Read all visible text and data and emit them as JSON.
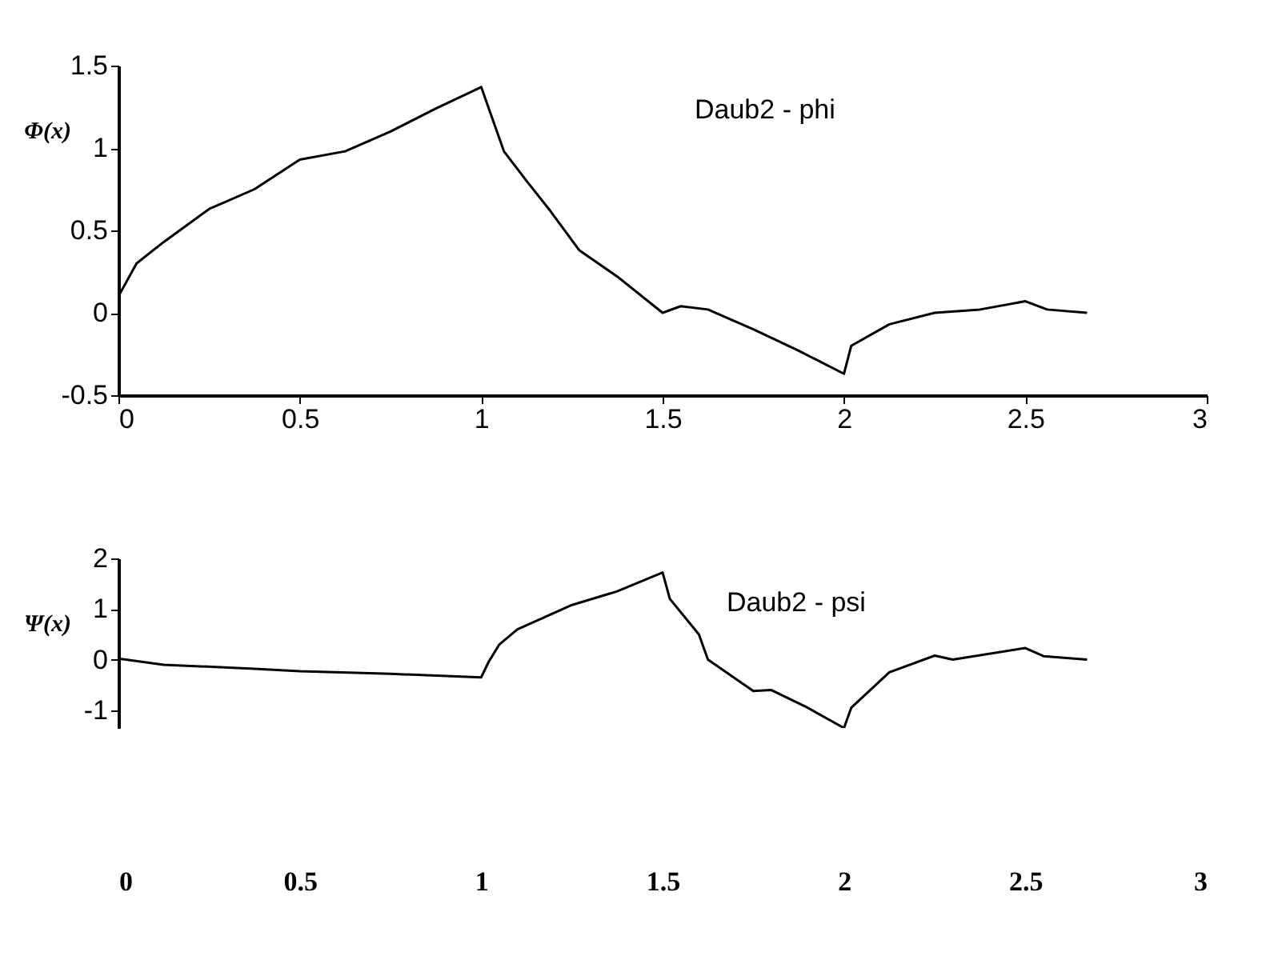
{
  "chart_data": [
    {
      "type": "line",
      "ylabel": "Φ(x)",
      "annotations": [
        "Daub2 - phi"
      ],
      "xlim": [
        0,
        3
      ],
      "xticks": [
        0,
        0.5,
        1,
        1.5,
        2,
        2.5,
        3
      ],
      "ylim": [
        -0.5,
        1.5
      ],
      "yticks": [
        -0.5,
        0,
        0.5,
        1,
        1.5
      ],
      "grid": false,
      "x": [
        0,
        0.05,
        0.125,
        0.25,
        0.375,
        0.5,
        0.625,
        0.75,
        0.875,
        1,
        1.0625,
        1.125,
        1.19,
        1.25,
        1.27,
        1.375,
        1.5,
        1.55,
        1.625,
        1.75,
        1.875,
        2,
        2.02,
        2.125,
        2.25,
        2.375,
        2.5,
        2.56,
        2.67
      ],
      "series": [
        {
          "color": "#000000",
          "values": [
            0.1,
            0.3,
            0.43,
            0.63,
            0.75,
            0.93,
            0.98,
            1.1,
            1.24,
            1.37,
            0.98,
            0.8,
            0.62,
            0.44,
            0.38,
            0.22,
            0,
            0.04,
            0.02,
            -0.1,
            -0.23,
            -0.37,
            -0.2,
            -0.07,
            0,
            0.02,
            0.07,
            0.02,
            0
          ]
        }
      ]
    },
    {
      "type": "line",
      "ylabel": "Ψ(x)",
      "annotations": [
        "Daub2 - psi"
      ],
      "xlim": [
        0,
        3
      ],
      "xticks": [
        0,
        0.5,
        1,
        1.5,
        2,
        2.5,
        3
      ],
      "ylim": [
        -1.35,
        2
      ],
      "yticks": [
        -1,
        0,
        1,
        2
      ],
      "grid": false,
      "x": [
        0,
        0.125,
        0.375,
        0.5,
        0.75,
        1,
        1.02,
        1.05,
        1.1,
        1.25,
        1.375,
        1.5,
        1.52,
        1.6,
        1.625,
        1.75,
        1.8,
        1.9,
        2,
        2.02,
        2.125,
        2.25,
        2.3,
        2.5,
        2.55,
        2.67
      ],
      "series": [
        {
          "color": "#000000",
          "values": [
            0.02,
            -0.1,
            -0.18,
            -0.23,
            -0.28,
            -0.35,
            -0.05,
            0.3,
            0.6,
            1.08,
            1.35,
            1.72,
            1.2,
            0.5,
            0,
            -0.62,
            -0.6,
            -0.95,
            -1.35,
            -0.95,
            -0.25,
            0.08,
            0,
            0.23,
            0.07,
            0
          ]
        }
      ]
    }
  ]
}
